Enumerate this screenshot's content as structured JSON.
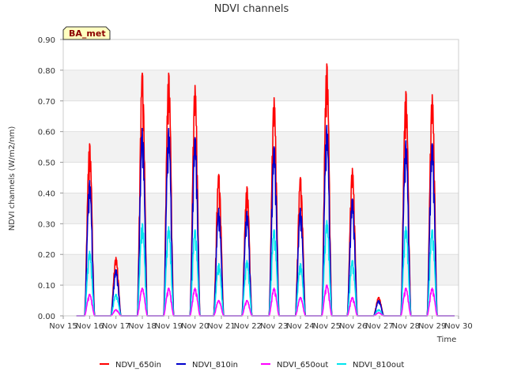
{
  "chart_data": {
    "type": "line",
    "title": "NDVI channels",
    "xlabel": "Time",
    "ylabel": "NDVI channels (W/m2/nm)",
    "badge": "BA_met",
    "ylim": [
      0,
      0.9
    ],
    "yticks": [
      0.0,
      0.1,
      0.2,
      0.3,
      0.4,
      0.5,
      0.6,
      0.7,
      0.8,
      0.9
    ],
    "ytick_labels": [
      "0.00",
      "0.10",
      "0.20",
      "0.30",
      "0.40",
      "0.50",
      "0.60",
      "0.70",
      "0.80",
      "0.90"
    ],
    "xlim": [
      15,
      30
    ],
    "xticks": [
      15,
      16,
      17,
      18,
      19,
      20,
      21,
      22,
      23,
      24,
      25,
      26,
      27,
      28,
      29,
      30
    ],
    "xtick_labels": [
      "Nov 15",
      "Nov 16",
      "Nov 17",
      "Nov 18",
      "Nov 19",
      "Nov 20",
      "Nov 21",
      "Nov 22",
      "Nov 23",
      "Nov 24",
      "Nov 25",
      "Nov 26",
      "Nov 27",
      "Nov 28",
      "Nov 29",
      "Nov 30"
    ],
    "grid": "horizontal bands",
    "legend_position": "bottom",
    "daily_peaks_x": [
      16.0,
      17.0,
      18.0,
      19.0,
      20.0,
      20.9,
      21.97,
      23.0,
      24.0,
      25.0,
      25.97,
      26.97,
      28.0,
      29.0
    ],
    "series": [
      {
        "name": "NDVI_650in",
        "color": "#ff0000",
        "values": [
          0.56,
          0.19,
          0.79,
          0.79,
          0.75,
          0.46,
          0.42,
          0.71,
          0.45,
          0.82,
          0.48,
          0.06,
          0.73,
          0.72
        ]
      },
      {
        "name": "NDVI_810in",
        "color": "#0000cc",
        "values": [
          0.44,
          0.15,
          0.61,
          0.61,
          0.58,
          0.35,
          0.34,
          0.55,
          0.35,
          0.62,
          0.38,
          0.05,
          0.57,
          0.56
        ]
      },
      {
        "name": "NDVI_650out",
        "color": "#ff00ff",
        "values": [
          0.07,
          0.02,
          0.09,
          0.09,
          0.09,
          0.05,
          0.05,
          0.09,
          0.06,
          0.1,
          0.06,
          0.01,
          0.09,
          0.09
        ]
      },
      {
        "name": "NDVI_810out",
        "color": "#00e5ee",
        "values": [
          0.21,
          0.07,
          0.3,
          0.29,
          0.28,
          0.17,
          0.18,
          0.28,
          0.17,
          0.31,
          0.18,
          0.02,
          0.29,
          0.28
        ]
      }
    ]
  }
}
